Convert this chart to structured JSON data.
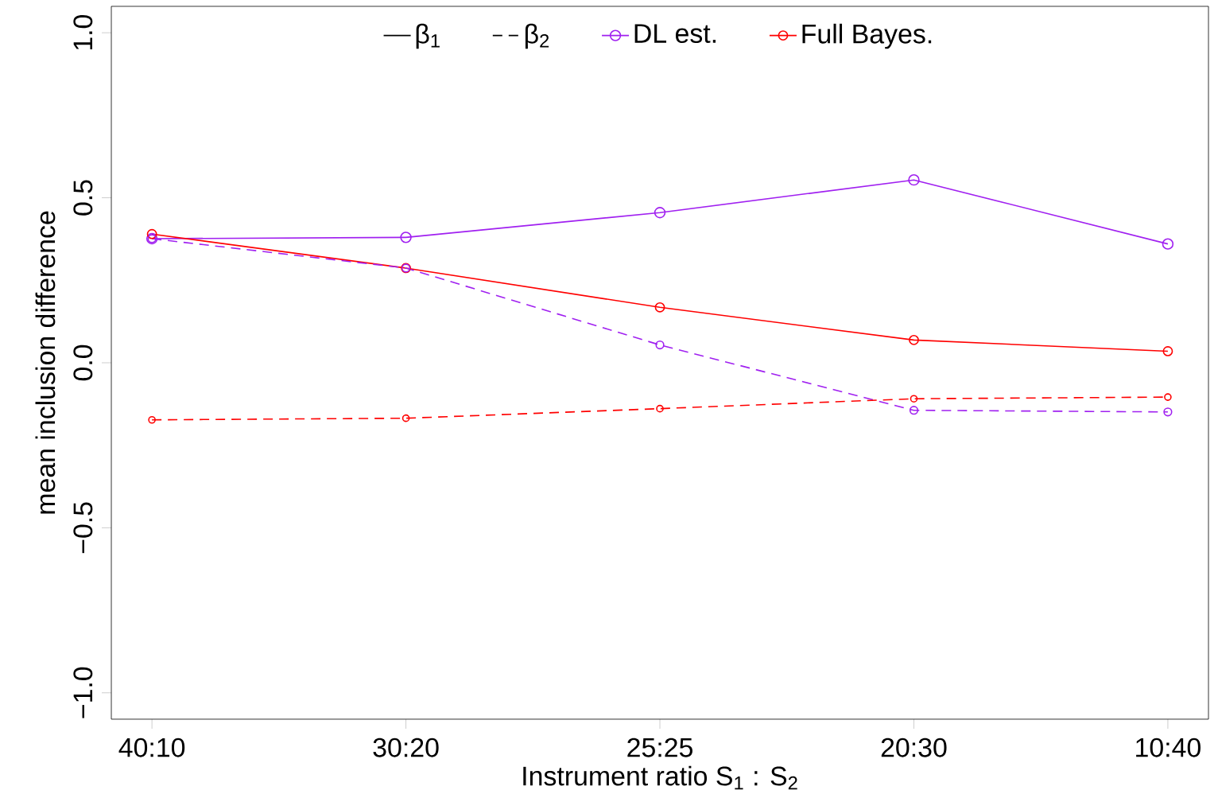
{
  "chart_data": {
    "type": "line",
    "xlabel": "Instrument ratio S$_{1}$ : S$_{2}$",
    "ylabel": "mean inclusion difference",
    "categories": [
      "40:10",
      "30:20",
      "25:25",
      "20:30",
      "10:40"
    ],
    "ylim": [
      -1.08,
      1.08
    ],
    "yticks": [
      {
        "value": -1,
        "label": "−1.0"
      },
      {
        "value": -0.5,
        "label": "−0.5"
      },
      {
        "value": 0,
        "label": "0.0"
      },
      {
        "value": 0.5,
        "label": "0.5"
      },
      {
        "value": 1,
        "label": "1.0"
      }
    ],
    "marker": "circle",
    "legend": "top",
    "annotations": [
      "β$_{1}$",
      "β$_{2}$"
    ],
    "series": [
      {
        "name": "DL est.",
        "color": "#a020f0",
        "line_style": "solid",
        "values": [
          0.376,
          0.38,
          0.455,
          0.554,
          0.36
        ]
      },
      {
        "name": "Full Bayes.",
        "color": "#ff0000",
        "line_style": "solid",
        "values": [
          0.39,
          0.287,
          0.168,
          0.069,
          0.035
        ]
      },
      {
        "color": "#a020f0",
        "line_style": "dashed",
        "values": [
          0.376,
          0.287,
          0.054,
          -0.144,
          -0.149
        ]
      },
      {
        "color": "#ff0000",
        "line_style": "dashed",
        "values": [
          -0.173,
          -0.168,
          -0.139,
          -0.109,
          -0.104
        ]
      }
    ]
  }
}
